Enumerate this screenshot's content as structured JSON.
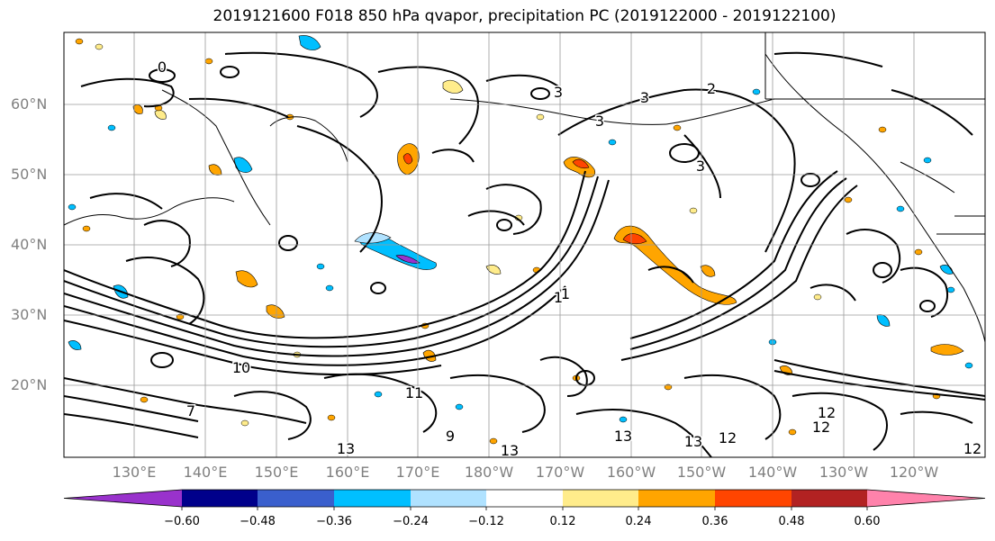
{
  "title": "2019121600 F018 850 hPa qvapor, precipitation PC (2019122000 - 2019122100)",
  "lat_labels": [
    "60°N",
    "50°N",
    "40°N",
    "30°N",
    "20°N"
  ],
  "lon_labels": [
    "130°E",
    "140°E",
    "150°E",
    "160°E",
    "170°E",
    "180°W",
    "170°W",
    "160°W",
    "150°W",
    "140°W",
    "130°W",
    "120°W"
  ],
  "contour_labels": [
    "0",
    "1",
    "2",
    "3",
    "3",
    "3",
    "3",
    "1",
    "10",
    "12",
    "12",
    "13",
    "13",
    "13",
    "13",
    "12",
    "12",
    "11",
    "9",
    "7"
  ],
  "colorbar": {
    "tick_labels": [
      "−0.60",
      "−0.48",
      "−0.36",
      "−0.24",
      "−0.12",
      "0.12",
      "0.24",
      "0.36",
      "0.48",
      "0.60"
    ],
    "colors": [
      "#9932cc",
      "#00008b",
      "#3a5fcd",
      "#00bfff",
      "#b0e2ff",
      "#ffffff",
      "#ffec8b",
      "#ffa500",
      "#ff4500",
      "#b22222",
      "#ff82ab"
    ]
  }
}
